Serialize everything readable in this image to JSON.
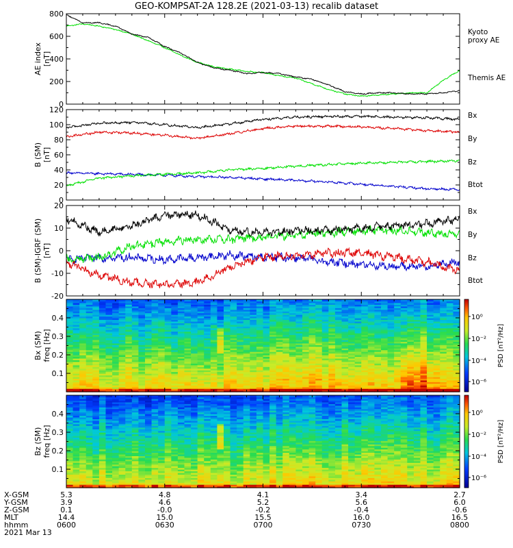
{
  "title": "GEO-KOMPSAT-2A 128.2E (2021-03-13) recalib dataset",
  "colors": {
    "black": "#000000",
    "green": "#00e000",
    "blue": "#0000cc",
    "red": "#dd0000"
  },
  "chart_data": [
    {
      "type": "line",
      "panel": "ae",
      "ylabel": "AE index\n[nT]",
      "ylim": [
        0,
        800
      ],
      "yticks": [
        0,
        200,
        400,
        600,
        800
      ],
      "xlim": [
        "06:00",
        "08:00"
      ],
      "series": [
        {
          "name": "Kyoto\nproxy AE",
          "color": "green",
          "x": [
            "06:00",
            "06:05",
            "06:10",
            "06:15",
            "06:20",
            "06:25",
            "06:30",
            "06:35",
            "06:40",
            "06:45",
            "06:50",
            "06:55",
            "07:00",
            "07:05",
            "07:10",
            "07:15",
            "07:20",
            "07:25",
            "07:30",
            "07:35",
            "07:40",
            "07:45",
            "07:50",
            "07:55",
            "08:00"
          ],
          "values": [
            690,
            710,
            690,
            660,
            620,
            560,
            500,
            430,
            370,
            330,
            310,
            290,
            280,
            250,
            230,
            180,
            130,
            90,
            70,
            80,
            90,
            100,
            100,
            210,
            300
          ]
        },
        {
          "name": "Themis AE",
          "color": "black",
          "x": [
            "06:00",
            "06:05",
            "06:10",
            "06:15",
            "06:20",
            "06:25",
            "06:30",
            "06:35",
            "06:40",
            "06:45",
            "06:50",
            "06:55",
            "07:00",
            "07:05",
            "07:10",
            "07:15",
            "07:20",
            "07:25",
            "07:30",
            "07:35",
            "07:40",
            "07:45",
            "07:50",
            "07:55",
            "08:00"
          ],
          "values": [
            790,
            720,
            720,
            690,
            620,
            590,
            510,
            450,
            370,
            320,
            300,
            270,
            280,
            270,
            240,
            220,
            170,
            110,
            90,
            100,
            100,
            90,
            90,
            100,
            120
          ]
        }
      ]
    },
    {
      "type": "line",
      "panel": "b_sm",
      "ylabel": "B (SM)\n[nT]",
      "ylim": [
        0,
        120
      ],
      "yticks": [
        0,
        20,
        40,
        60,
        80,
        100,
        120
      ],
      "series": [
        {
          "name": "Bx",
          "color": "blue",
          "x": [
            "06:00",
            "06:10",
            "06:20",
            "06:30",
            "06:40",
            "06:50",
            "07:00",
            "07:10",
            "07:20",
            "07:30",
            "07:40",
            "07:50",
            "08:00"
          ],
          "values": [
            36,
            35,
            34,
            33,
            31,
            30,
            28,
            26,
            24,
            21,
            18,
            15,
            14
          ]
        },
        {
          "name": "By",
          "color": "green",
          "x": [
            "06:00",
            "06:10",
            "06:20",
            "06:30",
            "06:40",
            "06:50",
            "07:00",
            "07:10",
            "07:20",
            "07:30",
            "07:40",
            "07:50",
            "08:00"
          ],
          "values": [
            19,
            29,
            32,
            34,
            36,
            40,
            42,
            45,
            47,
            49,
            50,
            51,
            52
          ]
        },
        {
          "name": "Bz",
          "color": "red",
          "x": [
            "06:00",
            "06:10",
            "06:20",
            "06:30",
            "06:40",
            "06:50",
            "07:00",
            "07:10",
            "07:20",
            "07:30",
            "07:40",
            "07:50",
            "08:00"
          ],
          "values": [
            84,
            90,
            89,
            86,
            82,
            88,
            95,
            98,
            98,
            97,
            95,
            92,
            90
          ]
        },
        {
          "name": "Btot",
          "color": "black",
          "x": [
            "06:00",
            "06:10",
            "06:20",
            "06:30",
            "06:40",
            "06:50",
            "07:00",
            "07:10",
            "07:20",
            "07:30",
            "07:40",
            "07:50",
            "08:00"
          ],
          "values": [
            96,
            102,
            103,
            100,
            96,
            101,
            107,
            110,
            111,
            111,
            110,
            109,
            107
          ]
        }
      ]
    },
    {
      "type": "line",
      "panel": "b_igrf",
      "ylabel": "B (SM)-IGRF (SM)\n[nT]",
      "ylim": [
        -20,
        20
      ],
      "yticks": [
        -20,
        -10,
        0,
        10,
        20
      ],
      "series": [
        {
          "name": "Bx",
          "color": "blue",
          "x": [
            "06:00",
            "06:10",
            "06:20",
            "06:30",
            "06:40",
            "06:50",
            "07:00",
            "07:10",
            "07:20",
            "07:30",
            "07:40",
            "07:50",
            "08:00"
          ],
          "values": [
            -4,
            -3,
            -3,
            -4,
            -3,
            -2,
            -3,
            -3,
            -5,
            -6,
            -7,
            -7,
            -5
          ]
        },
        {
          "name": "By",
          "color": "green",
          "x": [
            "06:00",
            "06:10",
            "06:20",
            "06:30",
            "06:40",
            "06:50",
            "07:00",
            "07:10",
            "07:20",
            "07:30",
            "07:40",
            "07:50",
            "08:00"
          ],
          "values": [
            -4,
            -3,
            2,
            4,
            5,
            5,
            6,
            7,
            8,
            9,
            9,
            8,
            7
          ]
        },
        {
          "name": "Bz",
          "color": "red",
          "x": [
            "06:00",
            "06:10",
            "06:20",
            "06:30",
            "06:40",
            "06:50",
            "07:00",
            "07:10",
            "07:20",
            "07:30",
            "07:40",
            "07:50",
            "08:00"
          ],
          "values": [
            -5,
            -11,
            -14,
            -15,
            -14,
            -7,
            -3,
            -2,
            -1,
            -1,
            -3,
            -5,
            -9
          ]
        },
        {
          "name": "Btot",
          "color": "black",
          "x": [
            "06:00",
            "06:10",
            "06:20",
            "06:30",
            "06:40",
            "06:50",
            "07:00",
            "07:10",
            "07:20",
            "07:30",
            "07:40",
            "07:50",
            "08:00"
          ],
          "values": [
            14,
            8,
            11,
            16,
            16,
            9,
            8,
            9,
            9,
            10,
            11,
            12,
            14
          ]
        }
      ]
    },
    {
      "type": "heatmap",
      "panel": "bx_psd",
      "ylabel": "Bx (SM)\nfreq [Hz]",
      "ylim": [
        0,
        0.5
      ],
      "yticks": [
        0.1,
        0.2,
        0.3,
        0.4
      ],
      "colorbar": {
        "label": "PSD [nT²/Hz]",
        "ticks": [
          "10⁰",
          "10⁻²",
          "10⁻⁴",
          "10⁻⁶"
        ]
      }
    },
    {
      "type": "heatmap",
      "panel": "bz_psd",
      "ylabel": "Bz (SM)\nfreq [Hz]",
      "ylim": [
        0,
        0.5
      ],
      "yticks": [
        0.1,
        0.2,
        0.3,
        0.4
      ],
      "colorbar": {
        "label": "PSD [nT²/Hz]",
        "ticks": [
          "10⁰",
          "10⁻²",
          "10⁻⁴",
          "10⁻⁶"
        ]
      }
    }
  ],
  "footer": {
    "labels": [
      "X-GSM",
      "Y-GSM",
      "Z-GSM",
      "MLT",
      "hhmm",
      "2021 Mar 13"
    ],
    "columns": [
      [
        "5.3",
        "3.9",
        "0.1",
        "14.4",
        "0600"
      ],
      [
        "4.8",
        "4.6",
        "-0.0",
        "15.0",
        "0630"
      ],
      [
        "4.1",
        "5.2",
        "-0.2",
        "15.5",
        "0700"
      ],
      [
        "3.4",
        "5.6",
        "-0.4",
        "16.0",
        "0730"
      ],
      [
        "2.7",
        "6.0",
        "-0.6",
        "16.5",
        "0800"
      ]
    ]
  }
}
